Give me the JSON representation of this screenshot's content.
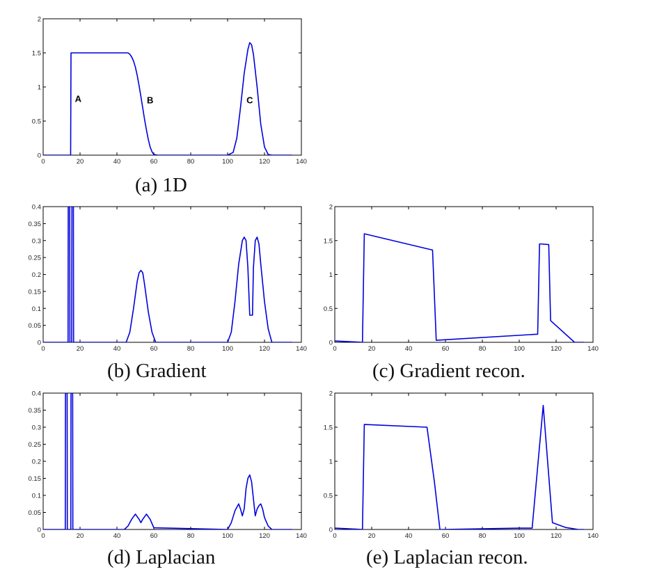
{
  "figure": {
    "captions": [
      "(a) 1D",
      "(b) Gradient",
      "(c) Gradient recon.",
      "(d) Laplacian",
      "(e) Laplacian recon."
    ]
  },
  "colors": {
    "line": "#0000dd",
    "axis": "#000000"
  },
  "chart_data": [
    {
      "id": "a",
      "type": "line",
      "title": "",
      "xlabel": "",
      "ylabel": "",
      "xlim": [
        0,
        140
      ],
      "ylim": [
        0,
        2
      ],
      "xticks": [
        0,
        20,
        40,
        60,
        80,
        100,
        120,
        140
      ],
      "yticks": [
        0,
        0.5,
        1,
        1.5,
        2
      ],
      "ytick_labels": [
        "0",
        "0.5",
        "1",
        "1.5",
        "2"
      ],
      "grid": false,
      "annotations": [
        {
          "text": "A",
          "x": 19,
          "y": 0.78
        },
        {
          "text": "B",
          "x": 58,
          "y": 0.76
        },
        {
          "text": "C",
          "x": 112,
          "y": 0.76
        }
      ],
      "series": [
        {
          "x": [
            0,
            14.9,
            15.1,
            16,
            30,
            40,
            46,
            47,
            48,
            49,
            50,
            51,
            52,
            53,
            54,
            55,
            56,
            57,
            58,
            59,
            60,
            62,
            100,
            103,
            105,
            107,
            109,
            111,
            112,
            113,
            114,
            116,
            118,
            120,
            122,
            124,
            135
          ],
          "y": [
            0,
            0,
            1.5,
            1.5,
            1.5,
            1.5,
            1.5,
            1.48,
            1.44,
            1.38,
            1.29,
            1.17,
            1.02,
            0.86,
            0.69,
            0.52,
            0.37,
            0.23,
            0.12,
            0.05,
            0.01,
            0,
            0,
            0.04,
            0.25,
            0.7,
            1.2,
            1.55,
            1.65,
            1.62,
            1.48,
            1.0,
            0.45,
            0.12,
            0.01,
            0,
            0
          ]
        }
      ]
    },
    {
      "id": "b",
      "type": "line",
      "title": "",
      "xlabel": "",
      "ylabel": "",
      "xlim": [
        0,
        140
      ],
      "ylim": [
        0,
        0.4
      ],
      "xticks": [
        0,
        20,
        40,
        60,
        80,
        100,
        120,
        140
      ],
      "yticks": [
        0,
        0.05,
        0.1,
        0.15,
        0.2,
        0.25,
        0.3,
        0.35,
        0.4
      ],
      "ytick_labels": [
        "0",
        "0.05",
        "0.1",
        "0.15",
        "0.2",
        "0.25",
        "0.3",
        "0.35",
        "0.4"
      ],
      "grid": false,
      "series": [
        {
          "x": [
            0,
            13.5,
            13.6,
            14.4,
            14.5,
            15.5,
            15.6,
            16.4,
            16.5,
            45,
            47,
            49,
            51,
            52,
            53,
            54,
            55,
            57,
            59,
            61,
            100,
            102,
            104,
            106,
            108,
            109,
            110,
            111,
            112,
            112.5,
            113,
            113.5,
            114,
            115,
            116,
            117,
            118,
            120,
            122,
            124,
            135
          ],
          "y": [
            0,
            0,
            0.4,
            0.4,
            0,
            0,
            0.4,
            0.4,
            0,
            0,
            0.03,
            0.1,
            0.18,
            0.205,
            0.212,
            0.205,
            0.17,
            0.09,
            0.03,
            0,
            0,
            0.03,
            0.12,
            0.23,
            0.3,
            0.31,
            0.3,
            0.22,
            0.08,
            0.08,
            0.08,
            0.08,
            0.22,
            0.3,
            0.31,
            0.29,
            0.23,
            0.12,
            0.04,
            0,
            0
          ]
        }
      ]
    },
    {
      "id": "c",
      "type": "line",
      "title": "",
      "xlabel": "",
      "ylabel": "",
      "xlim": [
        0,
        140
      ],
      "ylim": [
        0,
        2
      ],
      "xticks": [
        0,
        20,
        40,
        60,
        80,
        100,
        120,
        140
      ],
      "yticks": [
        0,
        0.5,
        1,
        1.5,
        2
      ],
      "ytick_labels": [
        "0",
        "0.5",
        "1",
        "1.5",
        "2"
      ],
      "grid": false,
      "series": [
        {
          "x": [
            0,
            8,
            15,
            16,
            53,
            55,
            110,
            111,
            112,
            116,
            117,
            130,
            135
          ],
          "y": [
            0.02,
            0.01,
            0,
            1.6,
            1.36,
            0.03,
            0.12,
            1.45,
            1.45,
            1.44,
            0.32,
            0,
            0
          ]
        }
      ]
    },
    {
      "id": "d",
      "type": "line",
      "title": "",
      "xlabel": "",
      "ylabel": "",
      "xlim": [
        0,
        140
      ],
      "ylim": [
        0,
        0.4
      ],
      "xticks": [
        0,
        20,
        40,
        60,
        80,
        100,
        120,
        140
      ],
      "yticks": [
        0,
        0.05,
        0.1,
        0.15,
        0.2,
        0.25,
        0.3,
        0.35,
        0.4
      ],
      "ytick_labels": [
        "0",
        "0.05",
        "0.1",
        "0.15",
        "0.2",
        "0.25",
        "0.3",
        "0.35",
        "0.4"
      ],
      "grid": false,
      "series": [
        {
          "x": [
            0,
            12,
            12.1,
            13,
            13.1,
            15,
            15.1,
            16,
            16.1,
            44,
            46,
            48,
            50,
            52,
            53,
            54,
            56,
            58,
            60,
            100,
            102,
            104,
            106,
            107,
            108,
            109,
            110,
            111,
            112,
            113,
            114,
            115,
            116,
            117,
            118,
            119,
            120,
            122,
            124,
            135
          ],
          "y": [
            0,
            0,
            0.4,
            0.4,
            0,
            0,
            0.4,
            0.4,
            0,
            0,
            0.01,
            0.03,
            0.045,
            0.03,
            0.02,
            0.03,
            0.045,
            0.03,
            0.005,
            0,
            0.02,
            0.055,
            0.075,
            0.06,
            0.04,
            0.06,
            0.12,
            0.15,
            0.16,
            0.14,
            0.09,
            0.04,
            0.06,
            0.07,
            0.075,
            0.06,
            0.035,
            0.01,
            0,
            0
          ]
        }
      ]
    },
    {
      "id": "e",
      "type": "line",
      "title": "",
      "xlabel": "",
      "ylabel": "",
      "xlim": [
        0,
        140
      ],
      "ylim": [
        0,
        2
      ],
      "xticks": [
        0,
        20,
        40,
        60,
        80,
        100,
        120,
        140
      ],
      "yticks": [
        0,
        0.5,
        1,
        1.5,
        2
      ],
      "ytick_labels": [
        "0",
        "0.5",
        "1",
        "1.5",
        "2"
      ],
      "grid": false,
      "series": [
        {
          "x": [
            0,
            8,
            15,
            16,
            50,
            54,
            57,
            58,
            100,
            107,
            113,
            118,
            125,
            132,
            135
          ],
          "y": [
            0.02,
            0.01,
            0,
            1.54,
            1.5,
            0.7,
            0,
            0,
            0.02,
            0.02,
            1.82,
            0.1,
            0.03,
            0,
            0
          ]
        }
      ]
    }
  ]
}
